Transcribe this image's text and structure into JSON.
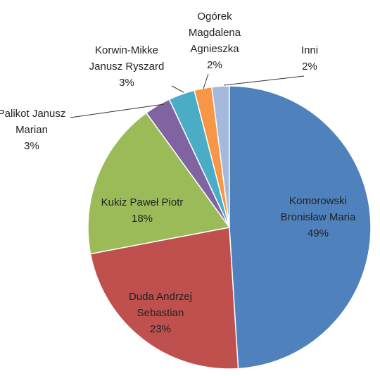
{
  "chart_data": {
    "type": "pie",
    "categories": [
      "Komorowski Bronisław Maria",
      "Duda Andrzej Sebastian",
      "Kukiz Paweł Piotr",
      "Palikot Janusz Marian",
      "Korwin-Mikke Janusz Ryszard",
      "Ogórek Magdalena Agnieszka",
      "Inni"
    ],
    "values": [
      49,
      23,
      18,
      3,
      3,
      2,
      2
    ],
    "value_labels": [
      "49%",
      "23%",
      "18%",
      "3%",
      "3%",
      "2%",
      "2%"
    ],
    "colors": [
      "#4f81bd",
      "#c0504d",
      "#9bbb59",
      "#8064a2",
      "#4bacc6",
      "#f79646",
      "#a5b9dc"
    ]
  }
}
